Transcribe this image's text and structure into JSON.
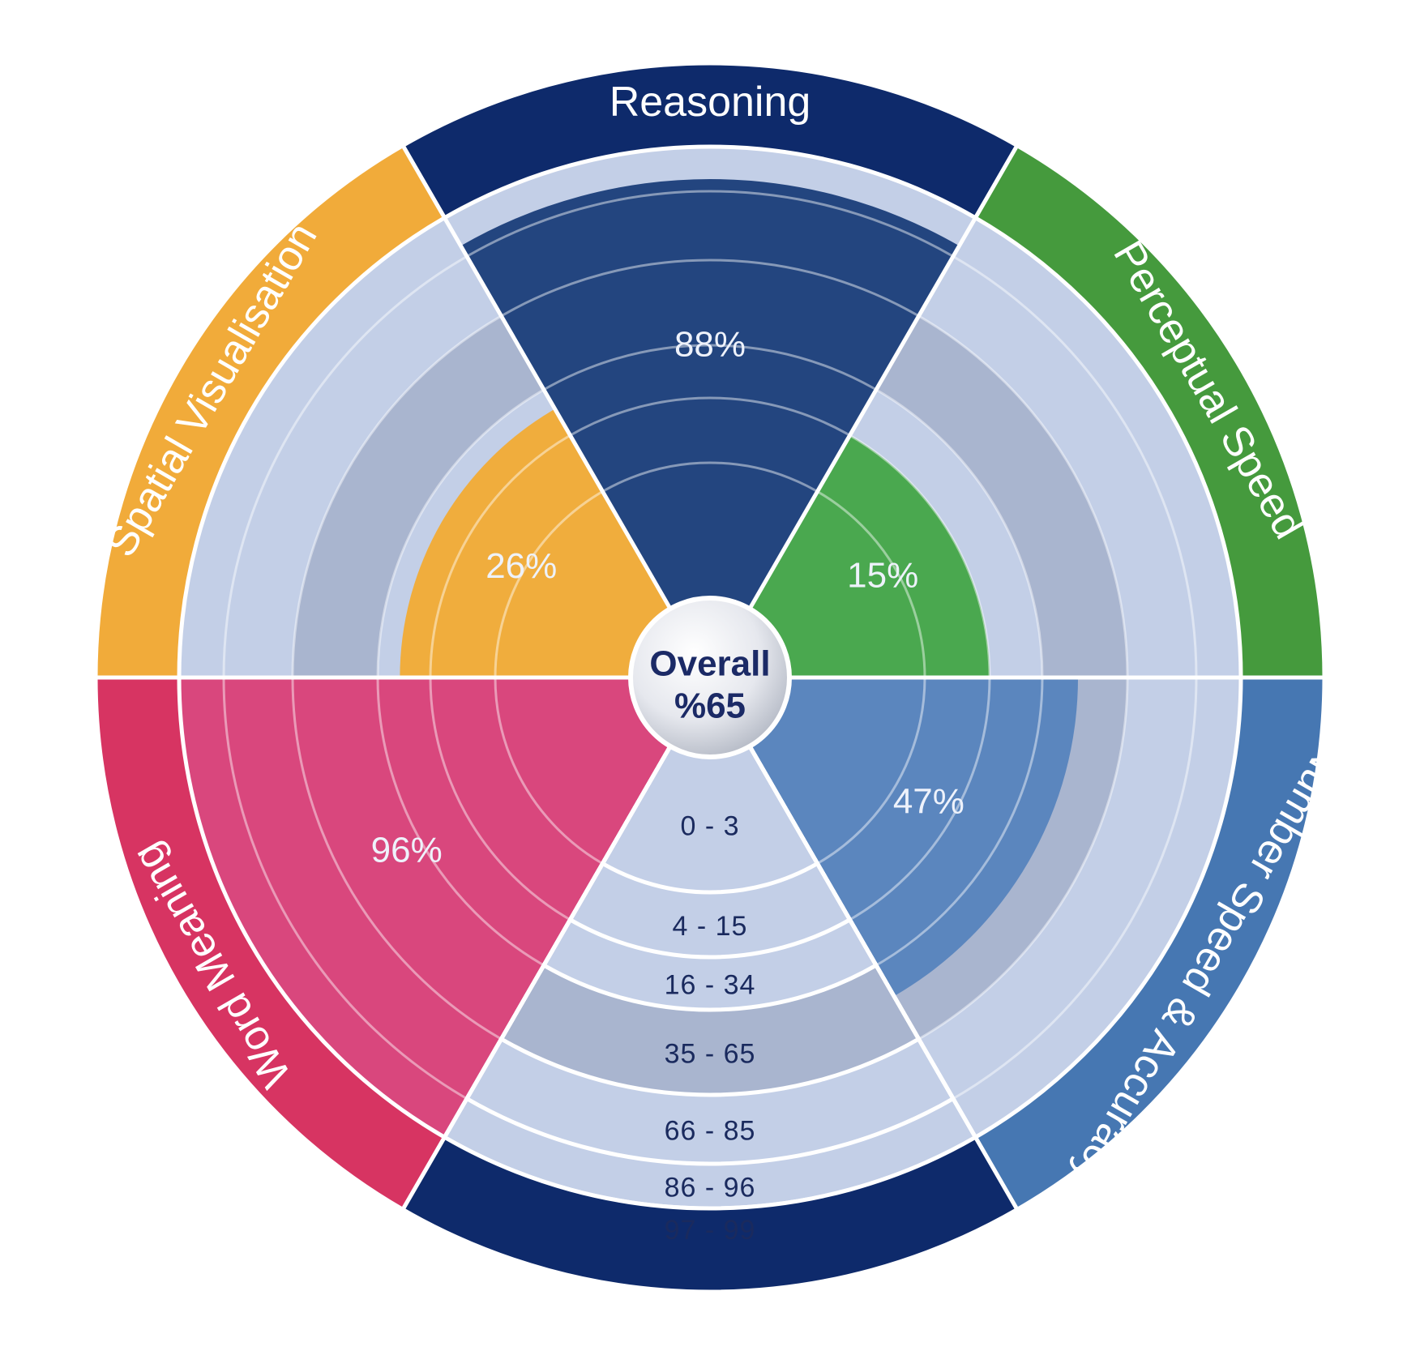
{
  "chart_data": {
    "type": "radial-percentile",
    "categories": [
      "Reasoning",
      "Perceptual Speed",
      "Number Speed & Accuracy",
      "Word Meaning",
      "Spatial Visualisation"
    ],
    "values": [
      88,
      15,
      47,
      96,
      26
    ],
    "value_labels": [
      "88%",
      "15%",
      "47%",
      "96%",
      "26%"
    ],
    "series_colors": [
      "#23457f",
      "#4aa84f",
      "#5b86be",
      "#d9477d",
      "#f0ad3d"
    ],
    "ring_colors": [
      "#0e2a6b",
      "#459a3d",
      "#4677b2",
      "#d73462",
      "#f1ab3a"
    ],
    "scale_bands": [
      "0 - 3",
      "4 - 15",
      "16 - 34",
      "35 - 65",
      "66 - 85",
      "86 - 96",
      "97 - 99"
    ],
    "band_limits": [
      3,
      15,
      34,
      65,
      85,
      96,
      99
    ],
    "highlight_band": "35 - 65",
    "overall": {
      "line1": "Overall",
      "line2": "%65"
    }
  }
}
